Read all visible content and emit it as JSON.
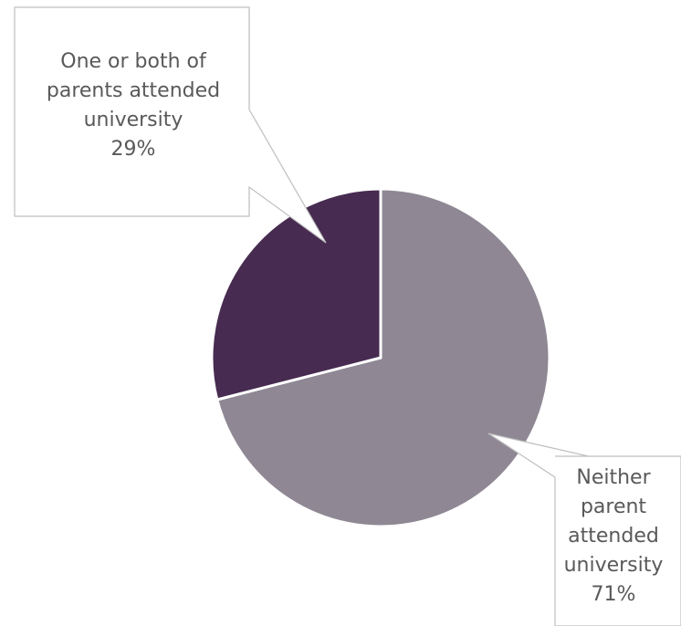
{
  "chart_data": {
    "type": "pie",
    "slices": [
      {
        "label_lines": [
          "Neither",
          "parent",
          "attended",
          "university",
          "71%"
        ],
        "category": "Neither parent attended university",
        "value": 71,
        "color": "#8f8894"
      },
      {
        "label_lines": [
          "One or both of",
          "parents attended",
          "university",
          "29%"
        ],
        "category": "One or both of parents attended university",
        "value": 29,
        "color": "#472b50"
      }
    ],
    "start_angle_deg": 0,
    "direction": "clockwise",
    "legend": "none",
    "data_labels": "callouts"
  }
}
